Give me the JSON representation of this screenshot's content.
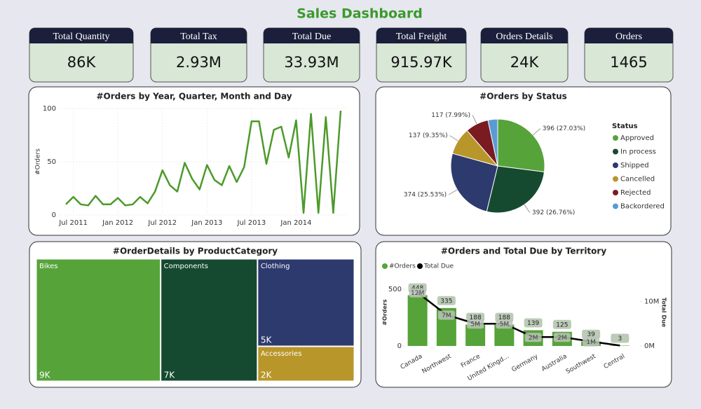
{
  "title": "Sales Dashboard",
  "cards": [
    {
      "label": "Total Quantity",
      "value": "86K"
    },
    {
      "label": "Total Tax",
      "value": "2.93M"
    },
    {
      "label": "Total Due",
      "value": "33.93M"
    },
    {
      "label": "Total Freight",
      "value": "915.97K"
    },
    {
      "label": "Orders Details",
      "value": "24K"
    },
    {
      "label": "Orders",
      "value": "1465"
    }
  ],
  "chart_data": [
    {
      "type": "line",
      "title": "#Orders by Year, Quarter, Month and Day",
      "y_label": "#Orders",
      "color": "#4c9a2a",
      "x": [
        "2011-06",
        "2011-07",
        "2011-08",
        "2011-09",
        "2011-10",
        "2011-11",
        "2011-12",
        "2012-01",
        "2012-02",
        "2012-03",
        "2012-04",
        "2012-05",
        "2012-06",
        "2012-07",
        "2012-08",
        "2012-09",
        "2012-10",
        "2012-11",
        "2012-12",
        "2013-01",
        "2013-02",
        "2013-03",
        "2013-04",
        "2013-05",
        "2013-06",
        "2013-07",
        "2013-08",
        "2013-09",
        "2013-10",
        "2013-11",
        "2013-12",
        "2014-01",
        "2014-02",
        "2014-03",
        "2014-04",
        "2014-05",
        "2014-06",
        "2014-07"
      ],
      "values": [
        10,
        17,
        10,
        9,
        18,
        10,
        10,
        16,
        9,
        10,
        17,
        11,
        22,
        42,
        28,
        22,
        49,
        34,
        24,
        47,
        33,
        28,
        46,
        31,
        45,
        88,
        88,
        48,
        80,
        83,
        54,
        89,
        2,
        95,
        2,
        92,
        2,
        98
      ],
      "xlim": [
        "2011-06",
        "2014-07"
      ],
      "xticks": [
        {
          "value": "2011-07",
          "label": "Jul 2011"
        },
        {
          "value": "2012-01",
          "label": "Jan 2012"
        },
        {
          "value": "2012-07",
          "label": "Jul 2012"
        },
        {
          "value": "2013-01",
          "label": "Jan 2013"
        },
        {
          "value": "2013-07",
          "label": "Jul 2013"
        },
        {
          "value": "2014-01",
          "label": "Jan 2014"
        }
      ],
      "ylim": [
        0,
        100
      ],
      "yticks": [
        0,
        50,
        100
      ],
      "grid": true
    },
    {
      "type": "pie",
      "title": "#Orders by Status",
      "legend_title": "Status",
      "categories": [
        "Approved",
        "In process",
        "Shipped",
        "Cancelled",
        "Rejected",
        "Backordered"
      ],
      "values": [
        396,
        392,
        374,
        137,
        117,
        49
      ],
      "value_labels": [
        "396 (27.03%)",
        "392 (26.76%)",
        "374 (25.53%)",
        "137 (9.35%)",
        "117 (7.99%)",
        null
      ],
      "colors": [
        "#56a33a",
        "#154a30",
        "#2d3a6e",
        "#b8962a",
        "#7a1b22",
        "#5b9bd5"
      ]
    },
    {
      "type": "treemap",
      "title": "#OrderDetails by ProductCategory",
      "categories": [
        "Bikes",
        "Components",
        "Clothing",
        "Accessories"
      ],
      "values": [
        9000,
        7000,
        5000,
        2000
      ],
      "value_labels": [
        "9K",
        "7K",
        "5K",
        "2K"
      ],
      "colors": [
        "#56a33a",
        "#154a30",
        "#2d3a6e",
        "#b8962a"
      ]
    },
    {
      "type": "combo",
      "title": "#Orders and Total Due by Territory",
      "y_label": "#Orders",
      "y2_label": "Total Due",
      "categories": [
        "Canada",
        "Northwest",
        "France",
        "United Kingd...",
        "Germany",
        "Australia",
        "Southwest",
        "Central"
      ],
      "series": [
        {
          "name": "#Orders",
          "color": "#56a33a",
          "values": [
            448,
            335,
            188,
            188,
            139,
            125,
            39,
            3
          ]
        },
        {
          "name": "Total Due",
          "color": "#000000",
          "axis": "y2",
          "values": [
            12000000,
            7000000,
            5000000,
            5000000,
            2000000,
            2000000,
            1000000,
            100000
          ],
          "value_labels": [
            "12M",
            "7M",
            "5M",
            "5M",
            "2M",
            "2M",
            "1M",
            null
          ]
        }
      ],
      "ylim": [
        0,
        550
      ],
      "yticks": [
        0,
        500
      ],
      "y2lim": [
        0,
        14000000
      ],
      "y2ticks": [
        {
          "value": 0,
          "label": "0M"
        },
        {
          "value": 10000000,
          "label": "10M"
        }
      ]
    }
  ]
}
